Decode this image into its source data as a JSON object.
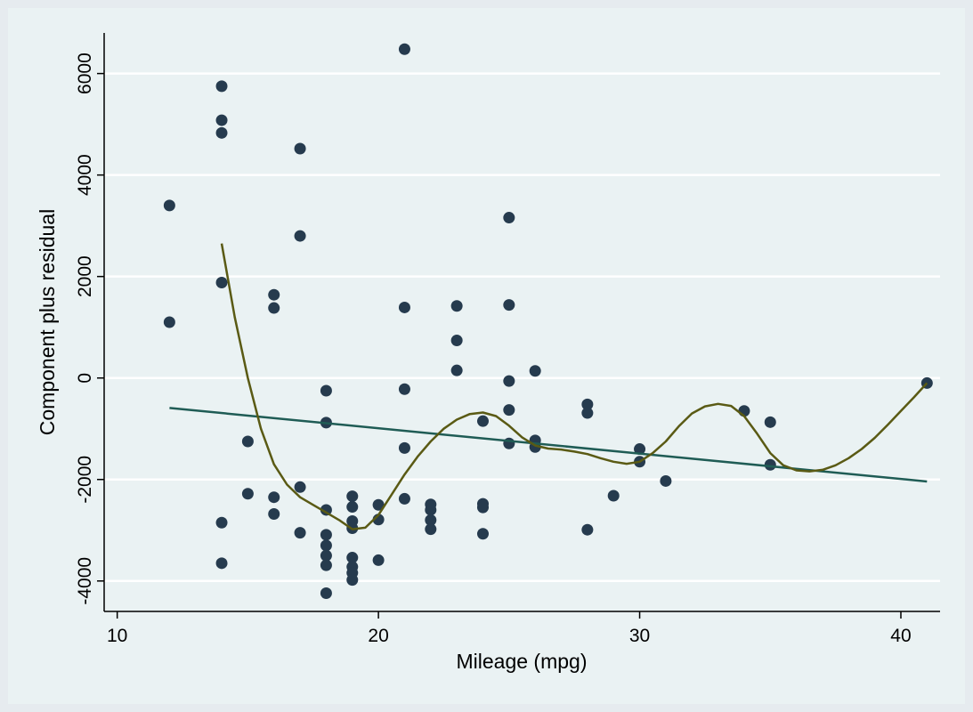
{
  "chart_data": {
    "type": "scatter",
    "xlabel": "Mileage (mpg)",
    "ylabel": "Component plus residual",
    "xlim": [
      9.5,
      41.5
    ],
    "ylim": [
      -4600,
      6800
    ],
    "xticks": [
      10,
      20,
      30,
      40
    ],
    "yticks": [
      -4000,
      -2000,
      0,
      2000,
      4000,
      6000
    ],
    "xtick_labels": [
      "10",
      "20",
      "30",
      "40"
    ],
    "ytick_labels": [
      "-4000",
      "-2000",
      "0",
      "2000",
      "4000",
      "6000"
    ],
    "grid": true,
    "colors": {
      "points": "#263b4e",
      "fit_line": "#1f5c55",
      "smooth_line": "#5a5a14",
      "plot_background": "#eaf2f3",
      "outer_background": "#e6ebef",
      "grid": "#ffffff"
    },
    "series": [
      {
        "type": "scatter",
        "points": [
          [
            12,
            3400
          ],
          [
            12,
            1100
          ],
          [
            14,
            5750
          ],
          [
            14,
            5080
          ],
          [
            14,
            4830
          ],
          [
            14,
            1880
          ],
          [
            14,
            -2850
          ],
          [
            14,
            -3650
          ],
          [
            15,
            -1250
          ],
          [
            15,
            -2280
          ],
          [
            16,
            1640
          ],
          [
            16,
            1380
          ],
          [
            16,
            -2350
          ],
          [
            16,
            -2680
          ],
          [
            17,
            4520
          ],
          [
            17,
            2800
          ],
          [
            17,
            -2150
          ],
          [
            17,
            -3050
          ],
          [
            18,
            -250
          ],
          [
            18,
            -880
          ],
          [
            18,
            -2600
          ],
          [
            18,
            -3090
          ],
          [
            18,
            -3300
          ],
          [
            18,
            -3500
          ],
          [
            18,
            -3690
          ],
          [
            18,
            -4240
          ],
          [
            19,
            -2330
          ],
          [
            19,
            -2540
          ],
          [
            19,
            -2820
          ],
          [
            19,
            -2960
          ],
          [
            19,
            -3540
          ],
          [
            19,
            -3720
          ],
          [
            19,
            -3840
          ],
          [
            19,
            -3980
          ],
          [
            20,
            -2500
          ],
          [
            20,
            -2790
          ],
          [
            20,
            -3590
          ],
          [
            21,
            6480
          ],
          [
            21,
            1390
          ],
          [
            21,
            -220
          ],
          [
            21,
            -1380
          ],
          [
            21,
            -2380
          ],
          [
            22,
            -2490
          ],
          [
            22,
            -2600
          ],
          [
            22,
            -2800
          ],
          [
            22,
            -2980
          ],
          [
            23,
            1420
          ],
          [
            23,
            740
          ],
          [
            23,
            150
          ],
          [
            24,
            -850
          ],
          [
            24,
            -2480
          ],
          [
            24,
            -2550
          ],
          [
            24,
            -3070
          ],
          [
            25,
            3160
          ],
          [
            25,
            1440
          ],
          [
            25,
            -60
          ],
          [
            25,
            -630
          ],
          [
            25,
            -1290
          ],
          [
            26,
            140
          ],
          [
            26,
            -1230
          ],
          [
            26,
            -1360
          ],
          [
            28,
            -520
          ],
          [
            28,
            -690
          ],
          [
            28,
            -2990
          ],
          [
            29,
            -2320
          ],
          [
            30,
            -1400
          ],
          [
            30,
            -1650
          ],
          [
            31,
            -2030
          ],
          [
            34,
            -650
          ],
          [
            35,
            -870
          ],
          [
            35,
            -1710
          ],
          [
            41,
            -100
          ]
        ]
      },
      {
        "type": "line",
        "points": [
          [
            12,
            -590
          ],
          [
            41,
            -2040
          ]
        ]
      },
      {
        "type": "line",
        "points": [
          [
            14,
            2650
          ],
          [
            14.5,
            1200
          ],
          [
            15,
            0
          ],
          [
            15.5,
            -1000
          ],
          [
            16,
            -1700
          ],
          [
            16.5,
            -2100
          ],
          [
            17,
            -2350
          ],
          [
            17.5,
            -2500
          ],
          [
            18,
            -2650
          ],
          [
            18.5,
            -2800
          ],
          [
            19,
            -2980
          ],
          [
            19.5,
            -2950
          ],
          [
            20,
            -2700
          ],
          [
            20.5,
            -2300
          ],
          [
            21,
            -1900
          ],
          [
            21.5,
            -1550
          ],
          [
            22,
            -1250
          ],
          [
            22.5,
            -1000
          ],
          [
            23,
            -820
          ],
          [
            23.5,
            -710
          ],
          [
            24,
            -680
          ],
          [
            24.5,
            -750
          ],
          [
            25,
            -940
          ],
          [
            25.5,
            -1170
          ],
          [
            26,
            -1330
          ],
          [
            26.5,
            -1390
          ],
          [
            27,
            -1410
          ],
          [
            27.5,
            -1450
          ],
          [
            28,
            -1500
          ],
          [
            28.5,
            -1580
          ],
          [
            29,
            -1650
          ],
          [
            29.5,
            -1690
          ],
          [
            30,
            -1650
          ],
          [
            30.5,
            -1480
          ],
          [
            31,
            -1250
          ],
          [
            31.5,
            -950
          ],
          [
            32,
            -700
          ],
          [
            32.5,
            -560
          ],
          [
            33,
            -510
          ],
          [
            33.5,
            -550
          ],
          [
            34,
            -750
          ],
          [
            34.5,
            -1100
          ],
          [
            35,
            -1480
          ],
          [
            35.5,
            -1720
          ],
          [
            36,
            -1820
          ],
          [
            36.5,
            -1840
          ],
          [
            37,
            -1810
          ],
          [
            37.5,
            -1720
          ],
          [
            38,
            -1580
          ],
          [
            38.5,
            -1400
          ],
          [
            39,
            -1180
          ],
          [
            39.5,
            -920
          ],
          [
            40,
            -650
          ],
          [
            40.5,
            -380
          ],
          [
            41,
            -100
          ]
        ]
      }
    ]
  }
}
